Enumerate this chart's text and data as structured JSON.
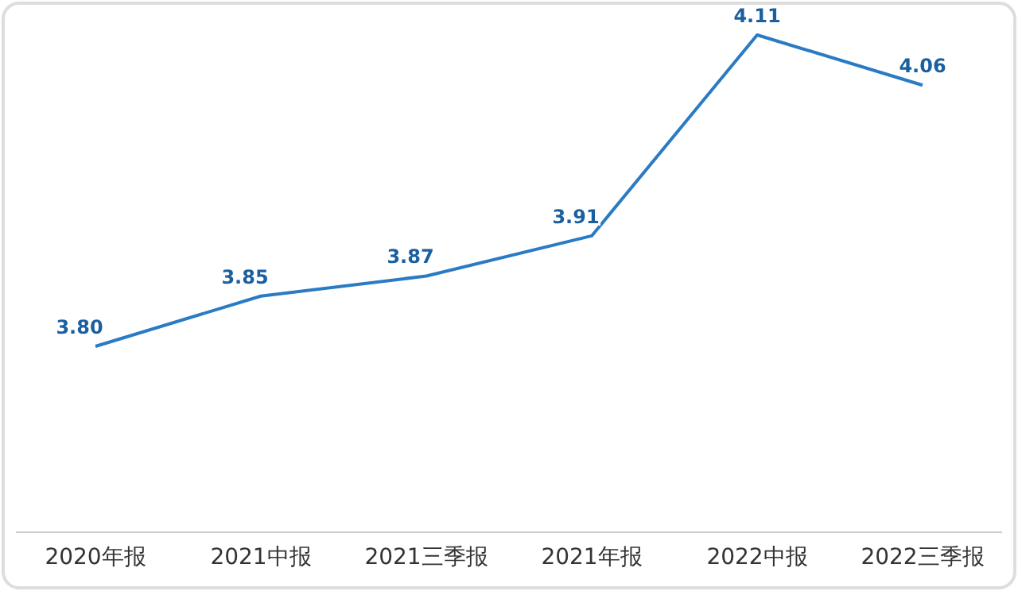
{
  "chart_data": {
    "type": "line",
    "categories": [
      "2020年报",
      "2021中报",
      "2021三季报",
      "2021年报",
      "2022中报",
      "2022三季报"
    ],
    "series": [
      {
        "color": "#2a7bc4",
        "values": [
          3.8,
          3.85,
          3.87,
          3.91,
          4.11,
          4.06
        ],
        "value_labels": [
          "3.80",
          "3.85",
          "3.87",
          "3.91",
          "4.11",
          "4.06"
        ]
      }
    ],
    "marker": "none",
    "line_style": "solid"
  }
}
